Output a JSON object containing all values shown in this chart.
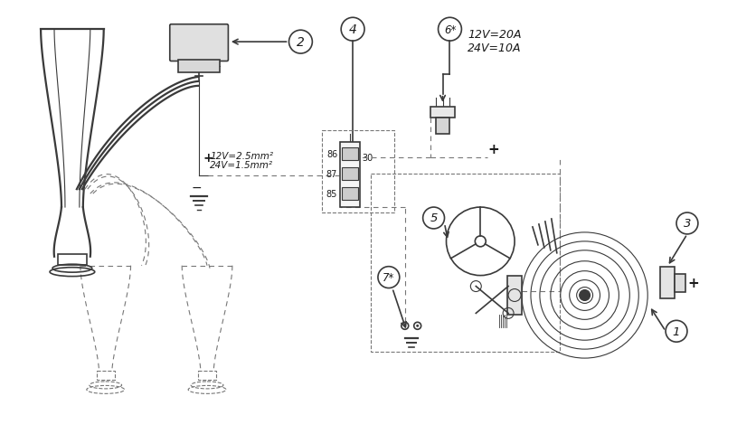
{
  "bg_color": "#ffffff",
  "line_color": "#3a3a3a",
  "dashed_color": "#777777",
  "text_color": "#1a1a1a",
  "fig_width": 8.15,
  "fig_height": 4.81,
  "compressor_text1": "+ 12V=2.5mm²",
  "compressor_text2": "  24V=1.5mm²",
  "fuse_text1": "12V=20A",
  "fuse_text2": "24V=10A"
}
